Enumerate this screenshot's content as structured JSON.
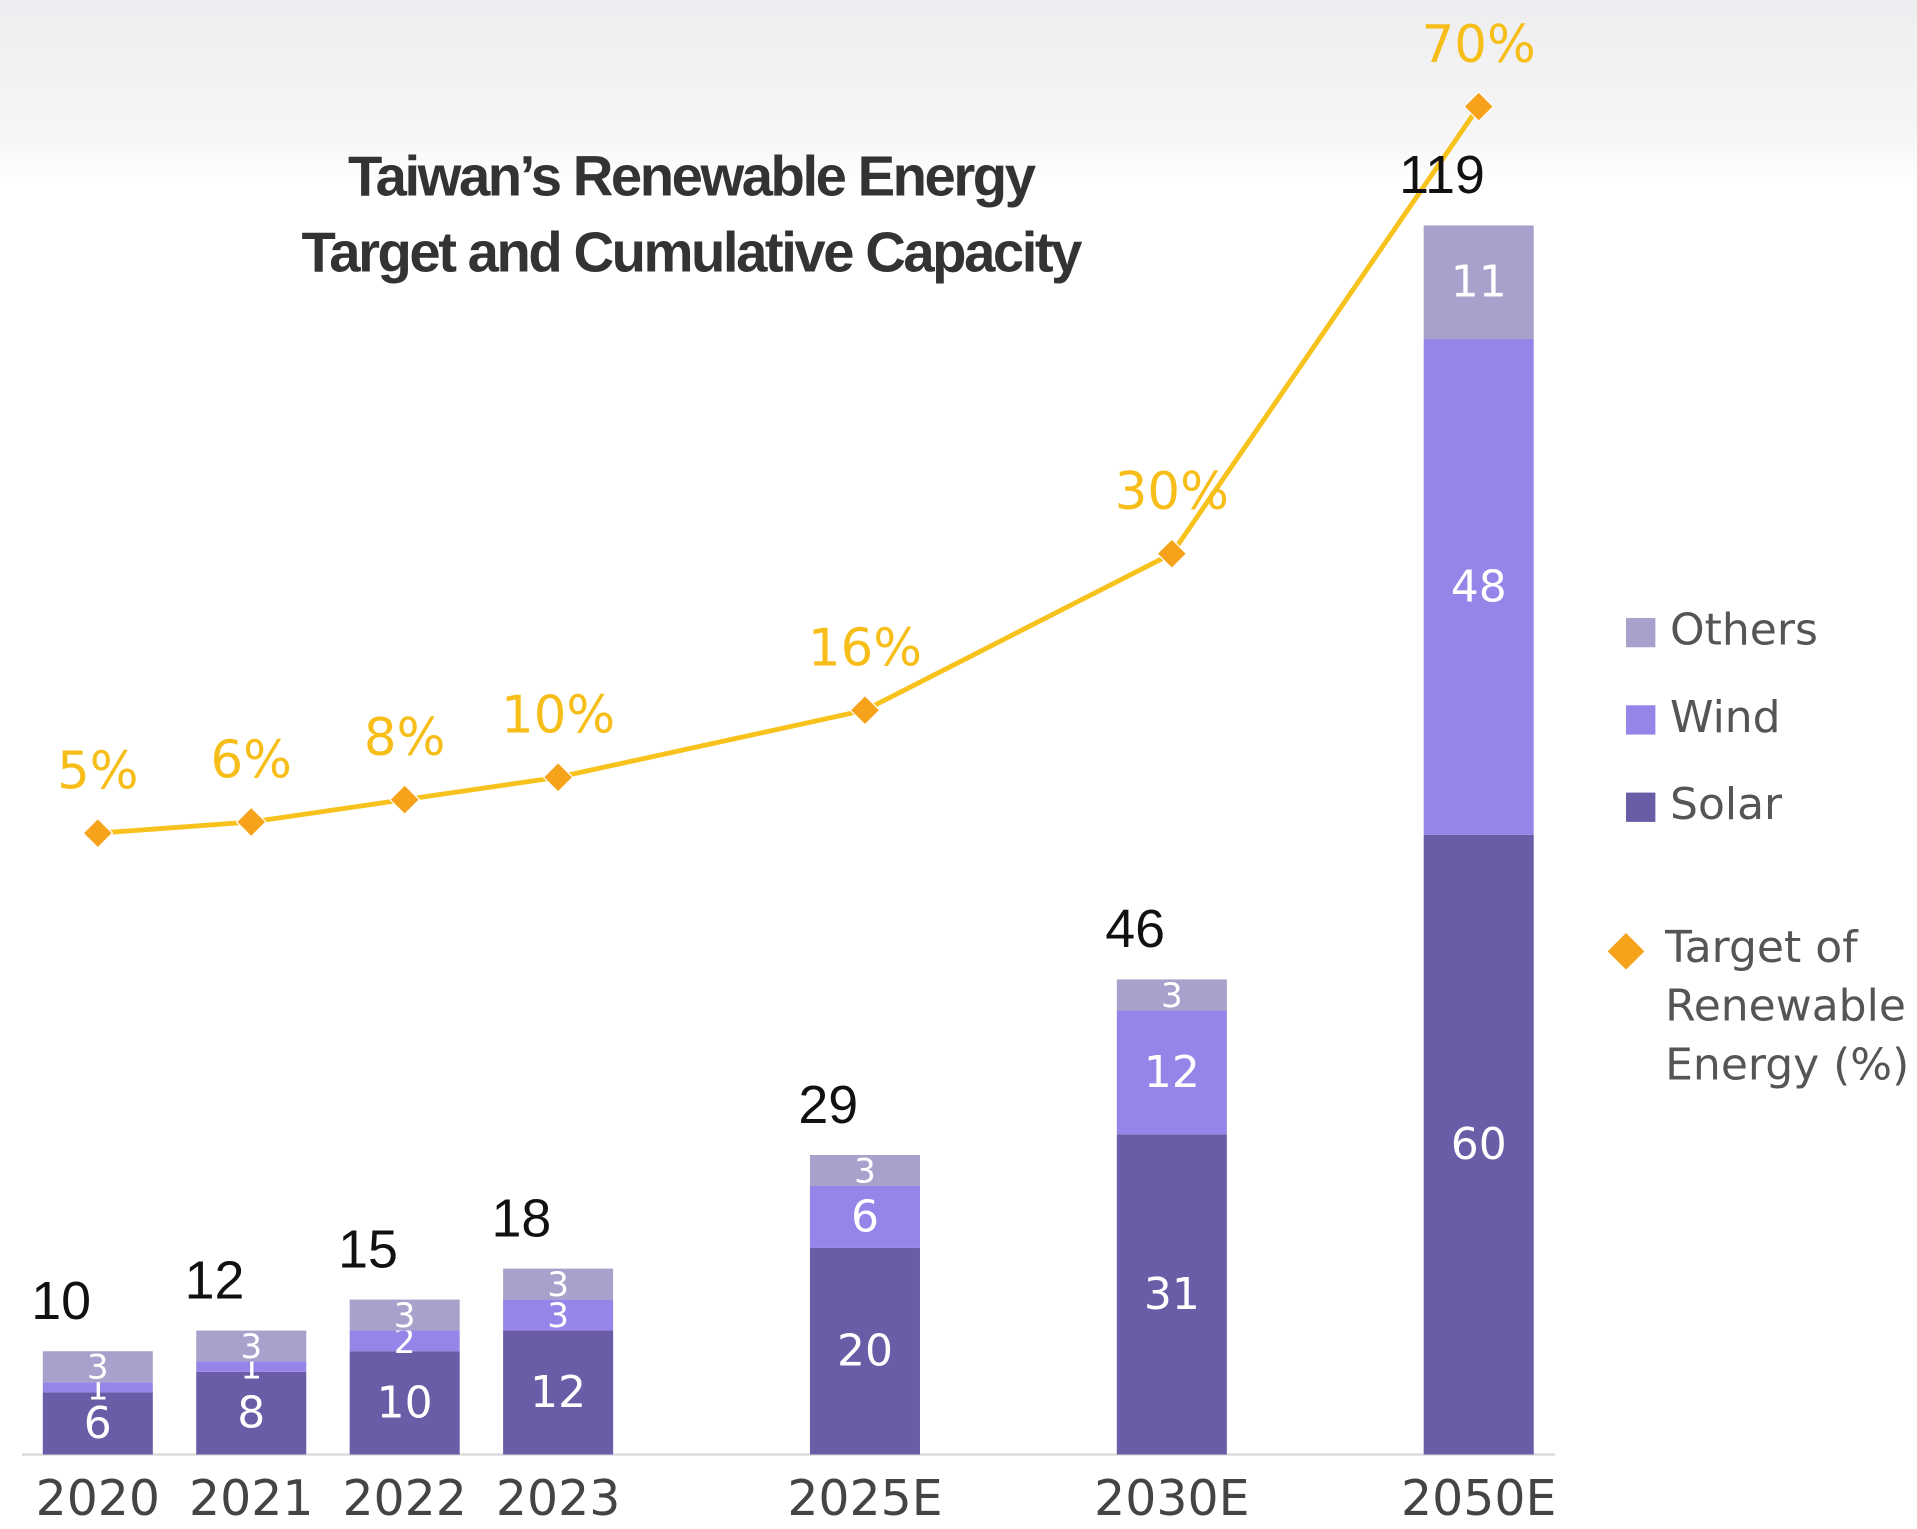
{
  "chart_data": {
    "type": "bar",
    "stacked": true,
    "title": "Taiwan’s Renewable Energy Target and Cumulative Capacity",
    "categories": [
      "2020",
      "2021",
      "2022",
      "2023",
      "2025E",
      "2030E",
      "2050E"
    ],
    "series": [
      {
        "name": "Solar",
        "color": "#6a5ca6",
        "values": [
          6,
          8,
          10,
          12,
          20,
          31,
          60
        ]
      },
      {
        "name": "Wind",
        "color": "#9784e8",
        "values": [
          1,
          1,
          2,
          3,
          6,
          12,
          48
        ]
      },
      {
        "name": "Others",
        "color": "#a9a0cc",
        "values": [
          3,
          3,
          3,
          3,
          3,
          3,
          11
        ]
      },
      {
        "name": "Target of Renewable Energy (%)",
        "type": "line",
        "axis": "y2",
        "color": "#f8c21c",
        "marker_color": "#f7a21b",
        "values": [
          5,
          6,
          8,
          10,
          16,
          30,
          70
        ],
        "value_labels": [
          "5%",
          "6%",
          "8%",
          "10%",
          "16%",
          "30%",
          "70%"
        ]
      }
    ],
    "totals": [
      10,
      12,
      15,
      18,
      29,
      46,
      119
    ],
    "annotation": "70%",
    "ylim": [
      0,
      140
    ],
    "y2lim": [
      0,
      80
    ],
    "legend": "right"
  }
}
